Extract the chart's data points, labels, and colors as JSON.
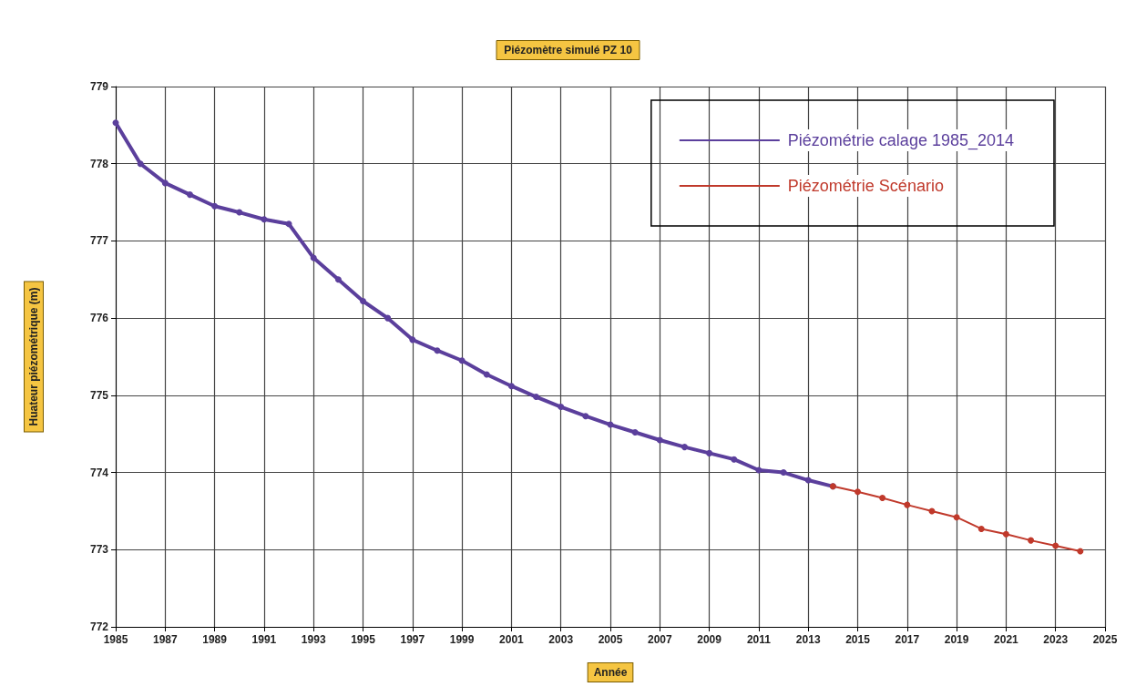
{
  "chart_data": {
    "type": "line",
    "title": "Piézomètre simulé PZ 10",
    "xlabel": "Année",
    "ylabel": "Huateur piézométrique (m)",
    "series": [
      {
        "name": "Piézométrie calage 1985_2014",
        "color": "#5b3f9c",
        "x": [
          1985,
          1986,
          1987,
          1988,
          1989,
          1990,
          1991,
          1992,
          1993,
          1994,
          1995,
          1996,
          1997,
          1998,
          1999,
          2000,
          2001,
          2002,
          2003,
          2004,
          2005,
          2006,
          2007,
          2008,
          2009,
          2010,
          2011,
          2012,
          2013,
          2014
        ],
        "values": [
          778.53,
          778.0,
          777.75,
          777.6,
          777.45,
          777.37,
          777.28,
          777.22,
          776.78,
          776.5,
          776.22,
          776.0,
          775.72,
          775.58,
          775.45,
          775.27,
          775.12,
          774.98,
          774.85,
          774.73,
          774.62,
          774.52,
          774.42,
          774.33,
          774.25,
          774.17,
          774.03,
          774.0,
          773.9,
          773.82
        ]
      },
      {
        "name": "Piézométrie Scénario",
        "color": "#c0392b",
        "x": [
          2014,
          2015,
          2016,
          2017,
          2018,
          2019,
          2020,
          2021,
          2022,
          2023,
          2024
        ],
        "values": [
          773.82,
          773.75,
          773.67,
          773.58,
          773.5,
          773.42,
          773.27,
          773.2,
          773.12,
          773.05,
          772.98
        ]
      }
    ],
    "xlim": [
      1985,
      2025
    ],
    "xticks": [
      1985,
      1987,
      1989,
      1991,
      1993,
      1995,
      1997,
      1999,
      2001,
      2003,
      2005,
      2007,
      2009,
      2011,
      2013,
      2015,
      2017,
      2019,
      2021,
      2023,
      2025
    ],
    "ylim": [
      772,
      779
    ],
    "yticks": [
      772,
      773,
      774,
      775,
      776,
      777,
      778,
      779
    ],
    "grid": true,
    "legend": "top right",
    "marker": "circle",
    "line_style": "solid"
  }
}
